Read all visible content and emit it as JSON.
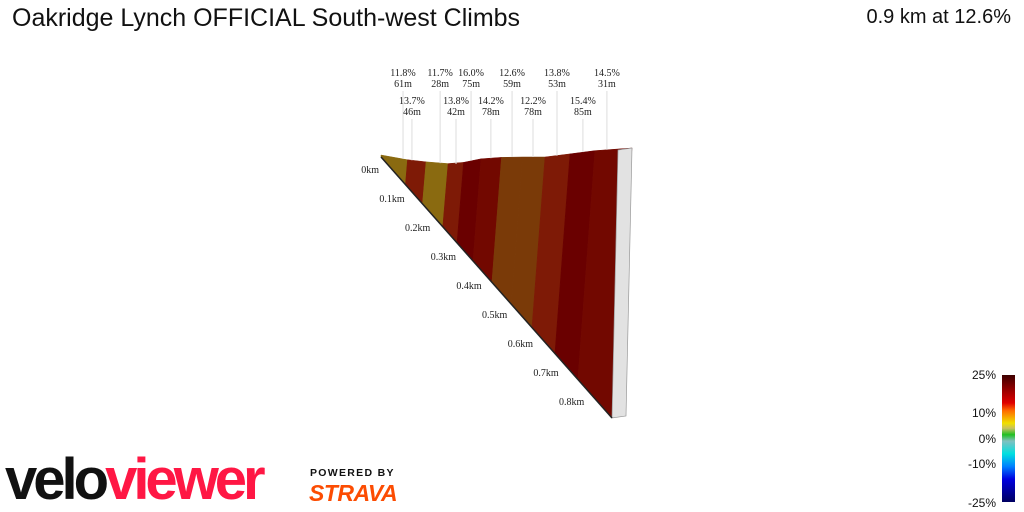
{
  "header": {
    "title": "Oakridge Lynch OFFICIAL South-west Climbs",
    "summary": "0.9 km at 12.6%"
  },
  "chart_data": {
    "type": "area",
    "title": "Oakridge Lynch OFFICIAL South-west Climbs",
    "xlabel": "",
    "ylabel": "",
    "x_ticks": [
      "0km",
      "0.1km",
      "0.2km",
      "0.3km",
      "0.4km",
      "0.5km",
      "0.6km",
      "0.7km",
      "0.8km"
    ],
    "total_km": 0.9,
    "segments": [
      {
        "gradient": "11.8%",
        "length": "61m",
        "at_km": 0.079,
        "g": 11.8
      },
      {
        "gradient": "13.7%",
        "length": "46m",
        "at_km": 0.111,
        "g": 13.7
      },
      {
        "gradient": "11.7%",
        "length": "28m",
        "at_km": 0.212,
        "g": 11.7
      },
      {
        "gradient": "13.8%",
        "length": "42m",
        "at_km": 0.269,
        "g": 13.8
      },
      {
        "gradient": "16.0%",
        "length": "75m",
        "at_km": 0.323,
        "g": 16.0
      },
      {
        "gradient": "14.2%",
        "length": "78m",
        "at_km": 0.394,
        "g": 14.2
      },
      {
        "gradient": "12.6%",
        "length": "59m",
        "at_km": 0.47,
        "g": 12.6
      },
      {
        "gradient": "12.2%",
        "length": "78m",
        "at_km": 0.545,
        "g": 12.2
      },
      {
        "gradient": "13.8%",
        "length": "53m",
        "at_km": 0.631,
        "g": 13.8
      },
      {
        "gradient": "15.4%",
        "length": "85m",
        "at_km": 0.724,
        "g": 15.4
      },
      {
        "gradient": "14.5%",
        "length": "31m",
        "at_km": 0.81,
        "g": 14.5
      }
    ],
    "colorscale": {
      "labels": [
        "25%",
        "10%",
        "0%",
        "-10%",
        "-25%"
      ],
      "min": -25,
      "max": 25
    }
  }
}
